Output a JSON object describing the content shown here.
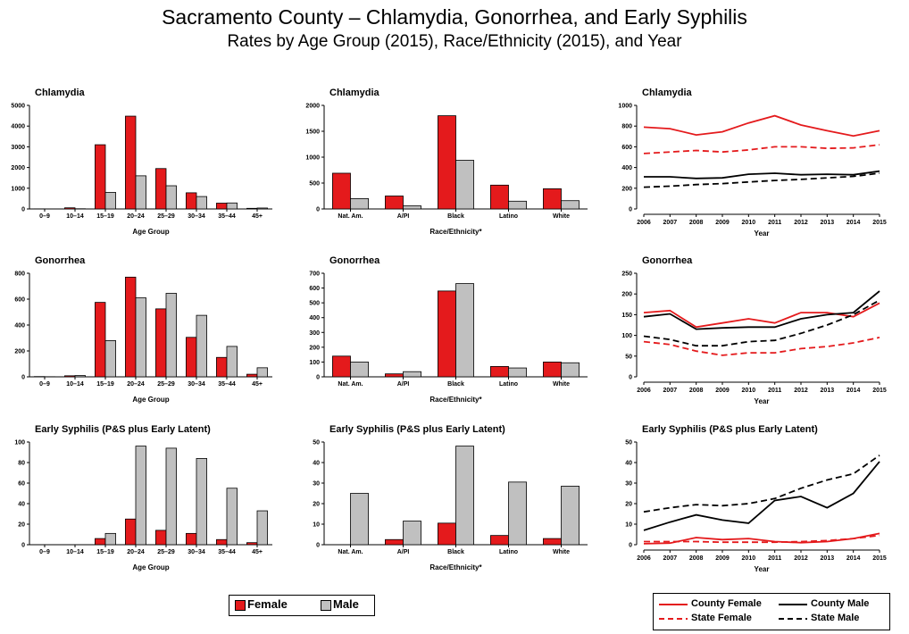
{
  "title": "Sacramento County – Chlamydia, Gonorrhea, and Early Syphilis",
  "subtitle": "Rates by Age Group (2015), Race/Ethnicity (2015), and Year",
  "colors": {
    "female": "#e41a1c",
    "male": "#c0c0c0",
    "county": "#e41a1c",
    "state": "#000000"
  },
  "legend_bar": {
    "female": "Female",
    "male": "Male"
  },
  "legend_line": {
    "county_female": "County Female",
    "county_male": "County Male",
    "state_female": "State Female",
    "state_male": "State Male"
  },
  "chart_data": [
    {
      "id": "age-chlamydia",
      "type": "bar",
      "title": "Chlamydia",
      "xlabel": "Age Group",
      "ylim": [
        0,
        5000
      ],
      "yticks": [
        0,
        1000,
        2000,
        3000,
        4000,
        5000
      ],
      "categories": [
        "0–9",
        "10–14",
        "15–19",
        "20–24",
        "25–29",
        "30–34",
        "35–44",
        "45+"
      ],
      "series": [
        {
          "name": "Female",
          "values": [
            5,
            55,
            3100,
            4480,
            1950,
            780,
            280,
            30
          ]
        },
        {
          "name": "Male",
          "values": [
            2,
            10,
            800,
            1600,
            1120,
            600,
            290,
            45
          ]
        }
      ]
    },
    {
      "id": "race-chlamydia",
      "type": "bar",
      "title": "Chlamydia",
      "xlabel": "Race/Ethnicity*",
      "ylim": [
        0,
        2000
      ],
      "yticks": [
        0,
        500,
        1000,
        1500,
        2000
      ],
      "categories": [
        "Nat. Am.",
        "A/PI",
        "Black",
        "Latino",
        "White"
      ],
      "series": [
        {
          "name": "Female",
          "values": [
            690,
            250,
            1800,
            460,
            390
          ]
        },
        {
          "name": "Male",
          "values": [
            200,
            60,
            940,
            150,
            160
          ]
        }
      ]
    },
    {
      "id": "year-chlamydia",
      "type": "line",
      "title": "Chlamydia",
      "xlabel": "Year",
      "ylim": [
        0,
        1000
      ],
      "yticks": [
        0,
        200,
        400,
        600,
        800,
        1000
      ],
      "x": [
        2006,
        2007,
        2008,
        2009,
        2010,
        2011,
        2012,
        2013,
        2014,
        2015
      ],
      "series": [
        {
          "name": "County Female",
          "values": [
            790,
            775,
            715,
            745,
            830,
            900,
            810,
            755,
            705,
            755
          ]
        },
        {
          "name": "County Male",
          "values": [
            310,
            310,
            295,
            300,
            335,
            345,
            330,
            335,
            330,
            365
          ]
        },
        {
          "name": "State Female",
          "values": [
            535,
            550,
            565,
            550,
            570,
            600,
            600,
            585,
            590,
            620
          ]
        },
        {
          "name": "State Male",
          "values": [
            210,
            220,
            235,
            245,
            260,
            275,
            285,
            300,
            315,
            345
          ]
        }
      ]
    },
    {
      "id": "age-gonorrhea",
      "type": "bar",
      "title": "Gonorrhea",
      "xlabel": "Age Group",
      "ylim": [
        0,
        800
      ],
      "yticks": [
        0,
        200,
        400,
        600,
        800
      ],
      "categories": [
        "0–9",
        "10–14",
        "15–19",
        "20–24",
        "25–29",
        "30–34",
        "35–44",
        "45+"
      ],
      "series": [
        {
          "name": "Female",
          "values": [
            2,
            8,
            575,
            770,
            525,
            305,
            150,
            20
          ]
        },
        {
          "name": "Male",
          "values": [
            1,
            10,
            280,
            610,
            645,
            475,
            235,
            70
          ]
        }
      ]
    },
    {
      "id": "race-gonorrhea",
      "type": "bar",
      "title": "Gonorrhea",
      "xlabel": "Race/Ethnicity*",
      "ylim": [
        0,
        700
      ],
      "yticks": [
        0,
        100,
        200,
        300,
        400,
        500,
        600,
        700
      ],
      "categories": [
        "Nat. Am.",
        "A/PI",
        "Black",
        "Latino",
        "White"
      ],
      "series": [
        {
          "name": "Female",
          "values": [
            140,
            20,
            580,
            70,
            100
          ]
        },
        {
          "name": "Male",
          "values": [
            100,
            35,
            630,
            60,
            95
          ]
        }
      ]
    },
    {
      "id": "year-gonorrhea",
      "type": "line",
      "title": "Gonorrhea",
      "xlabel": "Year",
      "ylim": [
        0,
        250
      ],
      "yticks": [
        0,
        50,
        100,
        150,
        200,
        250
      ],
      "x": [
        2006,
        2007,
        2008,
        2009,
        2010,
        2011,
        2012,
        2013,
        2014,
        2015
      ],
      "series": [
        {
          "name": "County Female",
          "values": [
            155,
            160,
            120,
            130,
            140,
            130,
            155,
            155,
            145,
            178
          ]
        },
        {
          "name": "County Male",
          "values": [
            145,
            152,
            115,
            118,
            120,
            120,
            140,
            150,
            155,
            207
          ]
        },
        {
          "name": "State Female",
          "values": [
            85,
            78,
            62,
            52,
            58,
            58,
            68,
            73,
            82,
            95
          ]
        },
        {
          "name": "State Male",
          "values": [
            98,
            90,
            75,
            75,
            85,
            88,
            105,
            125,
            150,
            185
          ]
        }
      ]
    },
    {
      "id": "age-syphilis",
      "type": "bar",
      "title": "Early Syphilis (P&S plus Early Latent)",
      "xlabel": "Age Group",
      "ylim": [
        0,
        100
      ],
      "yticks": [
        0,
        20,
        40,
        60,
        80,
        100
      ],
      "categories": [
        "0–9",
        "10–14",
        "15–19",
        "20–24",
        "25–29",
        "30–34",
        "35–44",
        "45+"
      ],
      "series": [
        {
          "name": "Female",
          "values": [
            0,
            0,
            6,
            25,
            14,
            11,
            5,
            2
          ]
        },
        {
          "name": "Male",
          "values": [
            0,
            0,
            11,
            96,
            94,
            84,
            55,
            33
          ]
        }
      ]
    },
    {
      "id": "race-syphilis",
      "type": "bar",
      "title": "Early Syphilis (P&S plus Early Latent)",
      "xlabel": "Race/Ethnicity*",
      "ylim": [
        0,
        50
      ],
      "yticks": [
        0,
        10,
        20,
        30,
        40,
        50
      ],
      "categories": [
        "Nat. Am.",
        "A/PI",
        "Black",
        "Latino",
        "White"
      ],
      "series": [
        {
          "name": "Female",
          "values": [
            0,
            2.5,
            10.5,
            4.5,
            3
          ]
        },
        {
          "name": "Male",
          "values": [
            25,
            11.5,
            48,
            30.5,
            28.5
          ]
        }
      ]
    },
    {
      "id": "year-syphilis",
      "type": "line",
      "title": "Early Syphilis (P&S plus Early Latent)",
      "xlabel": "Year",
      "ylim": [
        0,
        50
      ],
      "yticks": [
        0,
        10,
        20,
        30,
        40,
        50
      ],
      "x": [
        2006,
        2007,
        2008,
        2009,
        2010,
        2011,
        2012,
        2013,
        2014,
        2015
      ],
      "series": [
        {
          "name": "County Female",
          "values": [
            0.5,
            0.8,
            3.5,
            2.5,
            3,
            1.5,
            1,
            1.5,
            3,
            5.5
          ]
        },
        {
          "name": "County Male",
          "values": [
            7,
            11,
            14.5,
            12,
            10.5,
            21.5,
            23.5,
            18,
            25,
            40.5
          ]
        },
        {
          "name": "State Female",
          "values": [
            1.5,
            1.5,
            1.5,
            1.2,
            1.2,
            1.2,
            1.5,
            2,
            3,
            4.5
          ]
        },
        {
          "name": "State Male",
          "values": [
            16,
            18,
            19.5,
            19,
            20,
            22.5,
            27.5,
            31.5,
            34.5,
            43.5
          ]
        }
      ]
    }
  ]
}
